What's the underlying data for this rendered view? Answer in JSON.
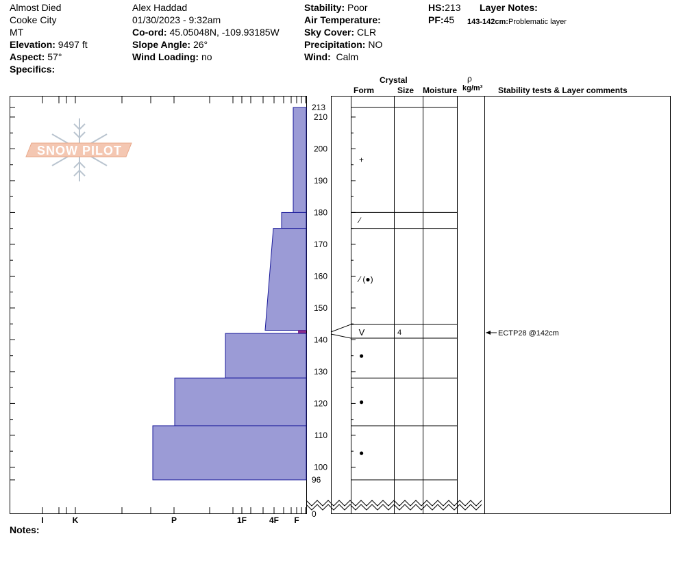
{
  "site": {
    "name": "Almost Died",
    "area": "Cooke City",
    "state": "MT",
    "elevation_label": "Elevation:",
    "elevation": "9497 ft",
    "aspect_label": "Aspect:",
    "aspect": "57°",
    "specifics_label": "Specifics:"
  },
  "observer": {
    "name": "Alex Haddad",
    "datetime": "01/30/2023 - 9:32am",
    "coord_label": "Co-ord:",
    "coord": "45.05048N, -109.93185W",
    "slope_label": "Slope Angle:",
    "slope": "26°",
    "wind_loading_label": "Wind Loading:",
    "wind_loading": "no"
  },
  "conditions": {
    "stability_label": "Stability:",
    "stability": "Poor",
    "air_temp_label": "Air Temperature:",
    "sky_label": "Sky Cover:",
    "sky": "CLR",
    "precip_label": "Precipitation:",
    "precip": "NO",
    "wind_label": "Wind:",
    "wind": "Calm"
  },
  "snowpack": {
    "hs_label": "HS:",
    "hs": "213",
    "pf_label": "PF:",
    "pf": "45",
    "layer_notes_label": "Layer Notes:",
    "layer_note_range": "143-142cm:",
    "layer_note_text": "Problematic layer"
  },
  "logo_text": "SNOW PILOT",
  "notes_label": "Notes:",
  "columns": {
    "crystal": "Crystal",
    "form": "Form",
    "size": "Size",
    "moisture": "Moisture",
    "rho": "ρ",
    "density": "kg/m³",
    "stability": "Stability tests & Layer comments"
  },
  "chart_data": {
    "type": "snow-profile",
    "y_unit": "cm",
    "y_top": 213,
    "y_bottom": 96,
    "y_ticks": [
      96,
      100,
      110,
      120,
      130,
      140,
      150,
      160,
      170,
      180,
      190,
      200,
      210,
      213
    ],
    "y_ground": 0,
    "hardness_scale": [
      "I",
      "K",
      "P",
      "1F",
      "4F",
      "F"
    ],
    "layers": [
      {
        "top": 213,
        "bottom": 180,
        "hardness": "F+",
        "form": "+",
        "size": ""
      },
      {
        "top": 180,
        "bottom": 175,
        "hardness": "F",
        "form": "⁄",
        "size": ""
      },
      {
        "top": 175,
        "bottom": 143,
        "hardness": "4F-F",
        "form": "⁄ (●)",
        "size": ""
      },
      {
        "top": 143,
        "bottom": 142,
        "hardness": "F-",
        "form": "V",
        "size": "4"
      },
      {
        "top": 142,
        "bottom": 128,
        "hardness": "1F",
        "form": "●",
        "size": ""
      },
      {
        "top": 128,
        "bottom": 113,
        "hardness": "P",
        "form": "●",
        "size": ""
      },
      {
        "top": 113,
        "bottom": 96,
        "hardness": "P-",
        "form": "●",
        "size": ""
      }
    ],
    "tests": [
      {
        "depth": 142,
        "label": "ECTP28 @142cm"
      }
    ]
  }
}
